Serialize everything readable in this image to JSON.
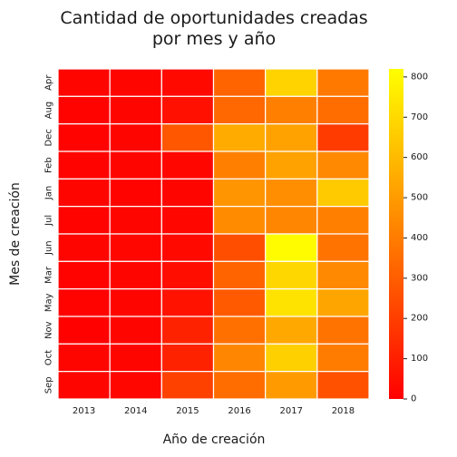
{
  "chart_data": {
    "type": "heatmap",
    "title_lines": [
      "Cantidad de oportunidades creadas",
      "por mes y año"
    ],
    "xlabel": "Año de creación",
    "ylabel": "Mes de creación",
    "x_categories": [
      "2013",
      "2014",
      "2015",
      "2016",
      "2017",
      "2018"
    ],
    "y_categories": [
      "Apr",
      "Aug",
      "Dec",
      "Feb",
      "Jan",
      "Jul",
      "Jun",
      "Mar",
      "May",
      "Nov",
      "Oct",
      "Sep"
    ],
    "values": [
      [
        15,
        15,
        30,
        320,
        680,
        390
      ],
      [
        10,
        15,
        50,
        330,
        410,
        350
      ],
      [
        10,
        15,
        280,
        550,
        520,
        190
      ],
      [
        10,
        15,
        20,
        410,
        520,
        440
      ],
      [
        15,
        10,
        15,
        480,
        460,
        650
      ],
      [
        10,
        15,
        20,
        450,
        430,
        410
      ],
      [
        15,
        20,
        30,
        250,
        810,
        370
      ],
      [
        10,
        15,
        45,
        320,
        690,
        440
      ],
      [
        10,
        15,
        60,
        290,
        730,
        530
      ],
      [
        5,
        15,
        110,
        360,
        540,
        370
      ],
      [
        15,
        15,
        110,
        430,
        670,
        400
      ],
      [
        15,
        20,
        210,
        350,
        500,
        260
      ]
    ],
    "colorbar": {
      "colormap": "autumn",
      "min": 0,
      "max": 820,
      "ticks": [
        0,
        100,
        200,
        300,
        400,
        500,
        600,
        700,
        800
      ],
      "tick_labels": [
        "0",
        "100",
        "200",
        "300",
        "400",
        "500",
        "600",
        "700",
        "800"
      ]
    },
    "grid": false,
    "legend": "right"
  }
}
